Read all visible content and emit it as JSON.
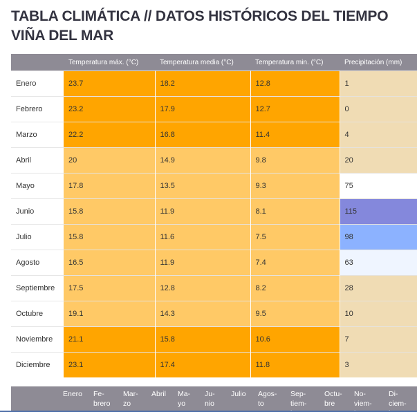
{
  "page": {
    "title_line1": "TABLA CLIMÁTICA // DATOS HISTÓRICOS DEL TIEMPO",
    "title_line2": "VIÑA DEL MAR"
  },
  "table": {
    "headers": [
      "",
      "Temperatura máx. (°C)",
      "Temperatura media (°C)",
      "Temperatura min. (°C)",
      "Precipitación (mm)"
    ],
    "rows": [
      {
        "month": "Enero",
        "tmax": "23.7",
        "tmean": "18.2",
        "tmin": "12.8",
        "prec": "1"
      },
      {
        "month": "Febrero",
        "tmax": "23.2",
        "tmean": "17.9",
        "tmin": "12.7",
        "prec": "0"
      },
      {
        "month": "Marzo",
        "tmax": "22.2",
        "tmean": "16.8",
        "tmin": "11.4",
        "prec": "4"
      },
      {
        "month": "Abril",
        "tmax": "20",
        "tmean": "14.9",
        "tmin": "9.8",
        "prec": "20"
      },
      {
        "month": "Mayo",
        "tmax": "17.8",
        "tmean": "13.5",
        "tmin": "9.3",
        "prec": "75"
      },
      {
        "month": "Junio",
        "tmax": "15.8",
        "tmean": "11.9",
        "tmin": "8.1",
        "prec": "115"
      },
      {
        "month": "Julio",
        "tmax": "15.8",
        "tmean": "11.6",
        "tmin": "7.5",
        "prec": "98"
      },
      {
        "month": "Agosto",
        "tmax": "16.5",
        "tmean": "11.9",
        "tmin": "7.4",
        "prec": "63"
      },
      {
        "month": "Septiembre",
        "tmax": "17.5",
        "tmean": "12.8",
        "tmin": "8.2",
        "prec": "28"
      },
      {
        "month": "Octubre",
        "tmax": "19.1",
        "tmean": "14.3",
        "tmin": "9.5",
        "prec": "10"
      },
      {
        "month": "Noviembre",
        "tmax": "21.1",
        "tmean": "15.8",
        "tmin": "10.6",
        "prec": "7"
      },
      {
        "month": "Diciembre",
        "tmax": "23.1",
        "tmean": "17.4",
        "tmin": "11.8",
        "prec": "3"
      }
    ]
  },
  "colors": {
    "header_bg": "#8e8b95",
    "temp_hot": "#ffa500",
    "temp_warm": "#ffc966",
    "prec_dry": "#f0dcb4",
    "prec_neutral": "#ffffff",
    "prec_light_blue": "#eff5ff",
    "prec_blue": "#8cb2ff",
    "prec_purple": "#8488dc",
    "title_text": "#333340",
    "bottom_line": "#4e6fa8"
  },
  "month_strip": {
    "labels": [
      "Enero",
      "Fe-\nbrero",
      "Mar-\nzo",
      "Abril",
      "Ma-\nyo",
      "Ju-\nnio",
      "Julio",
      "Agos-\nto",
      "Sep-\ntiem-\nbre",
      "Octu-\nbre",
      "No-\nviem-\nbre",
      "Di-\nciem-\nbre"
    ]
  }
}
